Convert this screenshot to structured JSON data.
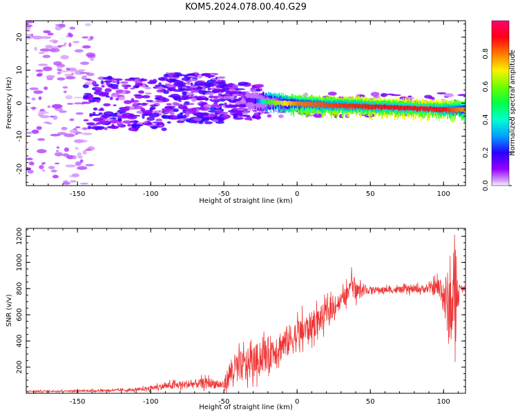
{
  "figure": {
    "title": "KOM5.2024.078.00.40.G29"
  },
  "colors": {
    "snr_line": "#ee3333",
    "axis": "#000000",
    "background": "#ffffff"
  },
  "chart_data": [
    {
      "type": "heatmap",
      "xlabel": "Height of straight line (km)",
      "ylabel": "Frequency (Hz)",
      "xlim": [
        -185,
        115
      ],
      "ylim": [
        -25,
        25
      ],
      "x_ticks": [
        -150,
        -100,
        -50,
        0,
        50,
        100
      ],
      "x_tick_labels": [
        "-150",
        "-100",
        "-50",
        "0",
        "50",
        "100"
      ],
      "y_ticks": [
        -20,
        -10,
        0,
        10,
        20
      ],
      "y_tick_labels": [
        "-20",
        "-10",
        "0",
        "10",
        "20"
      ],
      "colorbar": {
        "label": "Normalized spectral amplitude",
        "range": [
          0,
          1
        ],
        "ticks": [
          0.0,
          0.2,
          0.4,
          0.6,
          0.8
        ],
        "tick_labels": [
          "0.0",
          "0.2",
          "0.4",
          "0.6",
          "0.8"
        ],
        "colormap": "gist_rainbow_r"
      },
      "ridge": {
        "description_of_signal": "strong narrow band near 0 Hz from x=-30 to 115",
        "points": [
          {
            "x": -35,
            "freq": 1.0
          },
          {
            "x": -20,
            "freq": 0.3
          },
          {
            "x": 0,
            "freq": -0.2
          },
          {
            "x": 20,
            "freq": -0.6
          },
          {
            "x": 40,
            "freq": -0.9
          },
          {
            "x": 60,
            "freq": -1.2
          },
          {
            "x": 80,
            "freq": -1.6
          },
          {
            "x": 100,
            "freq": -1.9
          },
          {
            "x": 115,
            "freq": -2.0
          }
        ],
        "amplitude": [
          {
            "x": -30,
            "a": 0.15
          },
          {
            "x": -20,
            "a": 0.55
          },
          {
            "x": 0,
            "a": 0.8
          },
          {
            "x": 20,
            "a": 0.85
          },
          {
            "x": 40,
            "a": 0.88
          },
          {
            "x": 60,
            "a": 0.9
          },
          {
            "x": 80,
            "a": 0.92
          },
          {
            "x": 100,
            "a": 0.9
          },
          {
            "x": 115,
            "a": 0.75
          }
        ]
      },
      "scatter_regions": [
        {
          "x": [
            -185,
            -140
          ],
          "freq": [
            -25,
            25
          ],
          "amp": [
            0.02,
            0.08
          ],
          "count": 160
        },
        {
          "x": [
            -145,
            -90
          ],
          "freq": [
            -8,
            8
          ],
          "amp": [
            0.03,
            0.2
          ],
          "count": 220
        },
        {
          "x": [
            -90,
            -50
          ],
          "freq": [
            -6,
            9
          ],
          "amp": [
            0.04,
            0.22
          ],
          "count": 260
        },
        {
          "x": [
            -50,
            -25
          ],
          "freq": [
            -5,
            6
          ],
          "amp": [
            0.04,
            0.18
          ],
          "count": 120
        },
        {
          "x": [
            -25,
            115
          ],
          "freq": [
            -4,
            3
          ],
          "amp": [
            0.03,
            0.14
          ],
          "count": 110
        }
      ]
    },
    {
      "type": "line",
      "xlabel": "Height of straight line (km)",
      "ylabel": "SNR (v/v)",
      "xlim": [
        -185,
        115
      ],
      "ylim": [
        0,
        1260
      ],
      "x_ticks": [
        -150,
        -100,
        -50,
        0,
        50,
        100
      ],
      "x_tick_labels": [
        "-150",
        "-100",
        "-50",
        "0",
        "50",
        "100"
      ],
      "y_ticks": [
        200,
        400,
        600,
        800,
        1000,
        1200
      ],
      "y_tick_labels": [
        "200",
        "400",
        "600",
        "800",
        "1000",
        "1200"
      ],
      "series": [
        {
          "trend": [
            {
              "x": -185,
              "mean": 15,
              "amp": 12
            },
            {
              "x": -150,
              "mean": 18,
              "amp": 12
            },
            {
              "x": -110,
              "mean": 25,
              "amp": 20
            },
            {
              "x": -90,
              "mean": 55,
              "amp": 45
            },
            {
              "x": -60,
              "mean": 80,
              "amp": 70
            },
            {
              "x": -50,
              "mean": 60,
              "amp": 60
            },
            {
              "x": -45,
              "mean": 170,
              "amp": 220
            },
            {
              "x": -30,
              "mean": 240,
              "amp": 220
            },
            {
              "x": -15,
              "mean": 340,
              "amp": 230
            },
            {
              "x": 0,
              "mean": 440,
              "amp": 220
            },
            {
              "x": 15,
              "mean": 560,
              "amp": 180
            },
            {
              "x": 30,
              "mean": 710,
              "amp": 110
            },
            {
              "x": 37,
              "mean": 780,
              "amp": 150
            },
            {
              "x": 50,
              "mean": 790,
              "amp": 45
            },
            {
              "x": 70,
              "mean": 790,
              "amp": 45
            },
            {
              "x": 90,
              "mean": 800,
              "amp": 60
            },
            {
              "x": 98,
              "mean": 810,
              "amp": 160
            },
            {
              "x": 103,
              "mean": 650,
              "amp": 520
            },
            {
              "x": 108,
              "mean": 700,
              "amp": 560
            },
            {
              "x": 111,
              "mean": 800,
              "amp": 40
            },
            {
              "x": 115,
              "mean": 800,
              "amp": 20
            }
          ],
          "sample_count": 1400
        }
      ]
    }
  ]
}
